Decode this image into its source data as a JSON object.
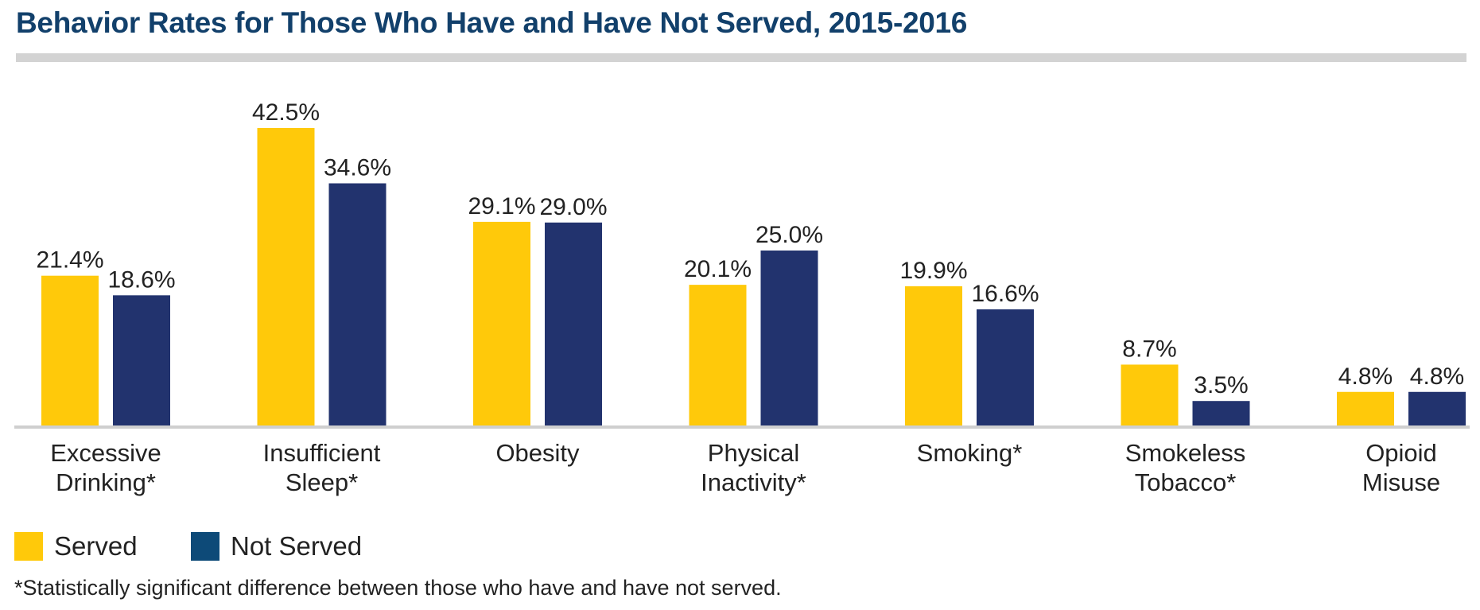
{
  "chart_data": {
    "type": "bar",
    "title": "Behavior Rates for Those Who Have and Have Not Served, 2015-2016",
    "categories": [
      [
        "Excessive",
        "Drinking*"
      ],
      [
        "Insufficient",
        "Sleep*"
      ],
      [
        "Obesity"
      ],
      [
        "Physical",
        "Inactivity*"
      ],
      [
        "Smoking*"
      ],
      [
        "Smokeless",
        "Tobacco*"
      ],
      [
        "Opioid",
        "Misuse"
      ]
    ],
    "series": [
      {
        "name": "Served",
        "color": "#ffc90a",
        "values": [
          21.4,
          42.5,
          29.1,
          20.1,
          19.9,
          8.7,
          4.8
        ],
        "labels": [
          "21.4%",
          "42.5%",
          "29.1%",
          "20.1%",
          "19.9%",
          "8.7%",
          "4.8%"
        ]
      },
      {
        "name": "Not Served",
        "color": "#22336e",
        "values": [
          18.6,
          34.6,
          29.0,
          25.0,
          16.6,
          3.5,
          4.8
        ],
        "labels": [
          "18.6%",
          "34.6%",
          "29.0%",
          "25.0%",
          "16.6%",
          "3.5%",
          "4.8%"
        ]
      }
    ],
    "ylim": [
      0,
      45
    ],
    "grid": false,
    "legend_position": "bottom-left"
  },
  "legend": {
    "served_label": "Served",
    "served_color": "#ffc90a",
    "not_served_label": "Not Served",
    "not_served_color": "#0d4a78"
  },
  "footnote": "*Statistically significant difference between those who have and have not served.",
  "colors": {
    "title": "#12406b",
    "rule": "#d3d3d3",
    "axis": "#cfcfcf"
  }
}
